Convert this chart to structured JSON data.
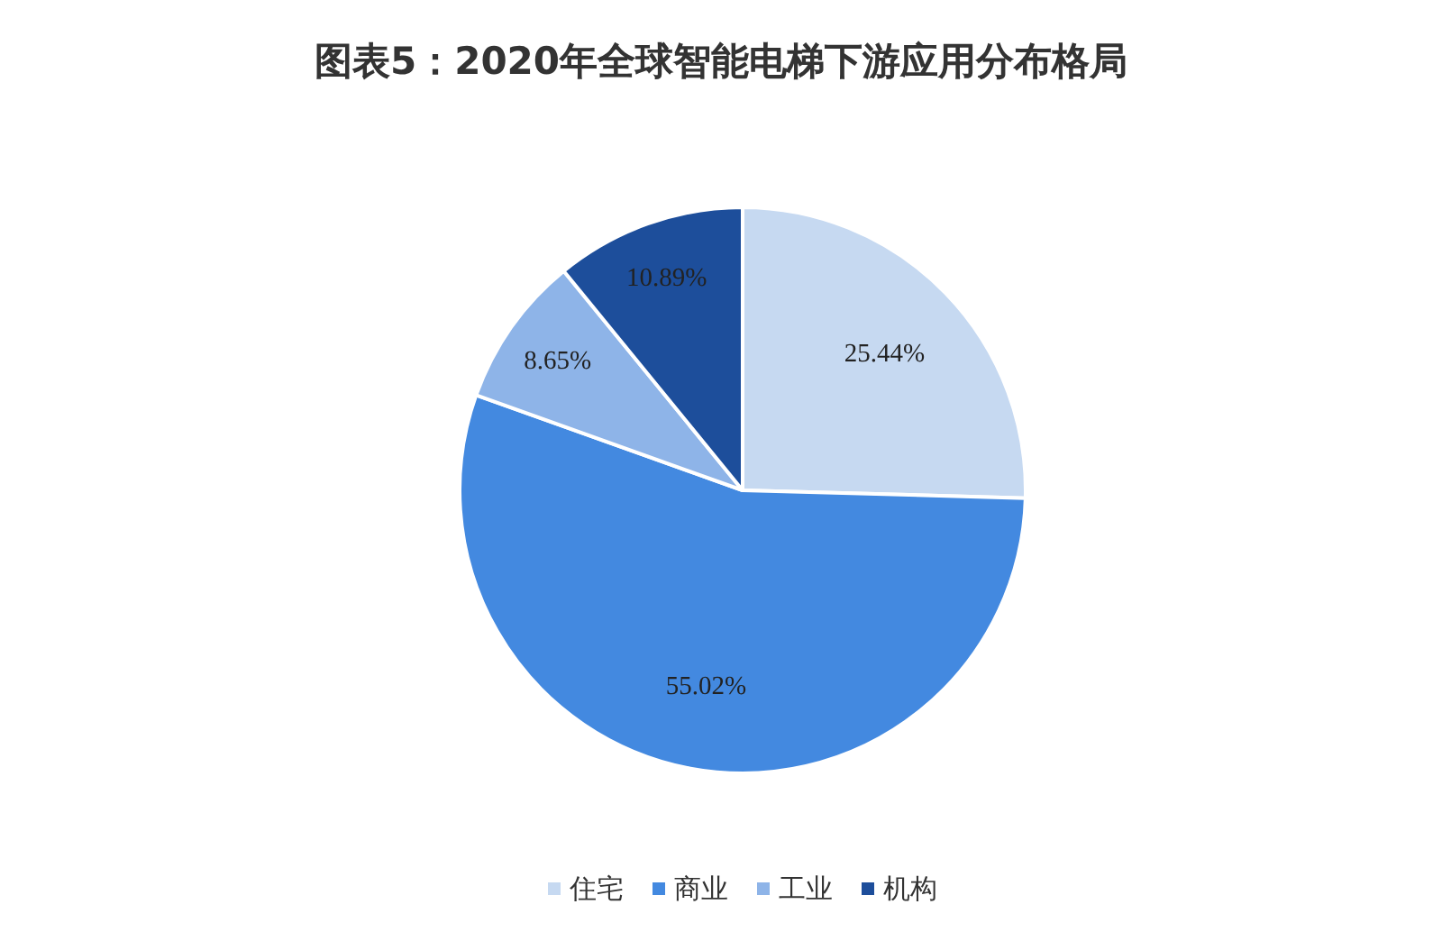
{
  "chart_data": {
    "type": "pie",
    "title": "图表5：2020年全球智能电梯下游应用分布格局",
    "categories": [
      "住宅",
      "商业",
      "工业",
      "机构"
    ],
    "values": [
      25.44,
      55.02,
      8.65,
      10.89
    ],
    "colors": [
      "#c6d9f1",
      "#4389e0",
      "#8eb4e8",
      "#1d4e9b"
    ],
    "value_labels": [
      "25.44%",
      "55.02%",
      "8.65%",
      "10.89%"
    ],
    "legend": "bottom"
  }
}
